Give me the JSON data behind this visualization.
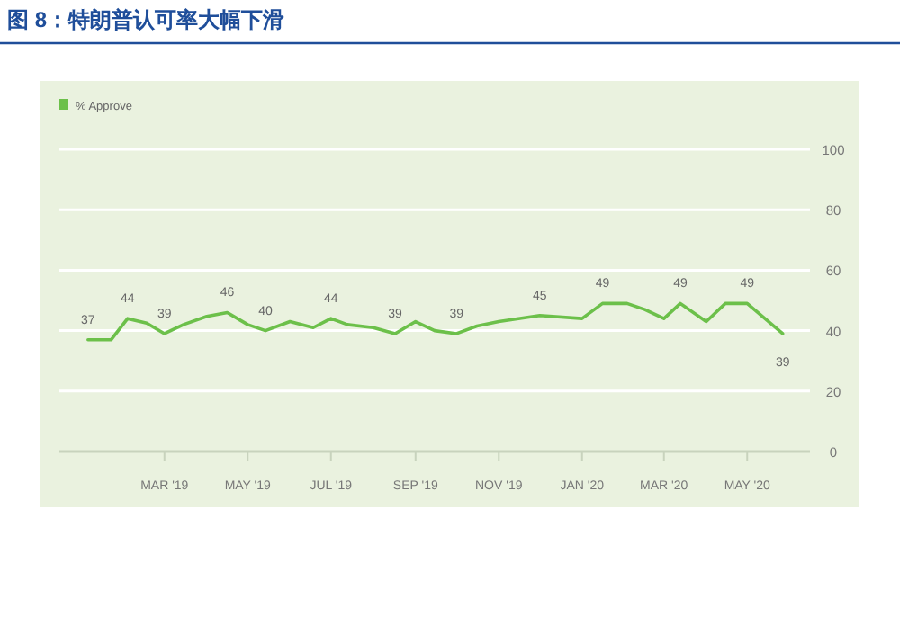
{
  "chart_data": {
    "type": "line",
    "title": "图 8：特朗普认可率大幅下滑",
    "x": [
      "2019-01-04",
      "2019-01-21",
      "2019-02-02",
      "2019-02-16",
      "2019-03-01",
      "2019-03-15",
      "2019-04-01",
      "2019-04-16",
      "2019-05-01",
      "2019-05-14",
      "2019-06-01",
      "2019-06-18",
      "2019-07-01",
      "2019-07-13",
      "2019-08-01",
      "2019-08-17",
      "2019-09-01",
      "2019-09-15",
      "2019-10-01",
      "2019-10-16",
      "2019-11-01",
      "2019-12-01",
      "2020-01-01",
      "2020-01-16",
      "2020-02-03",
      "2020-02-16",
      "2020-03-01",
      "2020-03-13",
      "2020-04-01",
      "2020-04-15",
      "2020-05-01",
      "2020-05-27"
    ],
    "series": [
      {
        "name": "% Approve",
        "color": "#6cc04a",
        "values": [
          37,
          37,
          44,
          42.5,
          39,
          42,
          44.7,
          46,
          42,
          40,
          43,
          41,
          44,
          42,
          41,
          39,
          43,
          40,
          39,
          41.5,
          43,
          45,
          44,
          49,
          49,
          47,
          44,
          49,
          43,
          49,
          49,
          39
        ],
        "value_labels": [
          "37",
          null,
          "44",
          null,
          "39",
          null,
          null,
          "46",
          null,
          "40",
          null,
          null,
          "44",
          null,
          null,
          "39",
          null,
          null,
          "39",
          null,
          null,
          "45",
          null,
          "49",
          null,
          null,
          null,
          "49",
          null,
          null,
          "49",
          "39"
        ]
      }
    ],
    "xlim": [
      "2018-12-14",
      "2020-06-16"
    ],
    "xticks": [
      {
        "value": "2019-03-01",
        "label": "MAR '19"
      },
      {
        "value": "2019-05-01",
        "label": "MAY '19"
      },
      {
        "value": "2019-07-01",
        "label": "JUL '19"
      },
      {
        "value": "2019-09-01",
        "label": "SEP '19"
      },
      {
        "value": "2019-11-01",
        "label": "NOV '19"
      },
      {
        "value": "2020-01-01",
        "label": "JAN '20"
      },
      {
        "value": "2020-03-01",
        "label": "MAR '20"
      },
      {
        "value": "2020-05-01",
        "label": "MAY '20"
      }
    ],
    "ylim": [
      0,
      100
    ],
    "yticks": [
      0,
      20,
      40,
      60,
      80,
      100
    ],
    "grid": "y",
    "legend": "top left"
  }
}
